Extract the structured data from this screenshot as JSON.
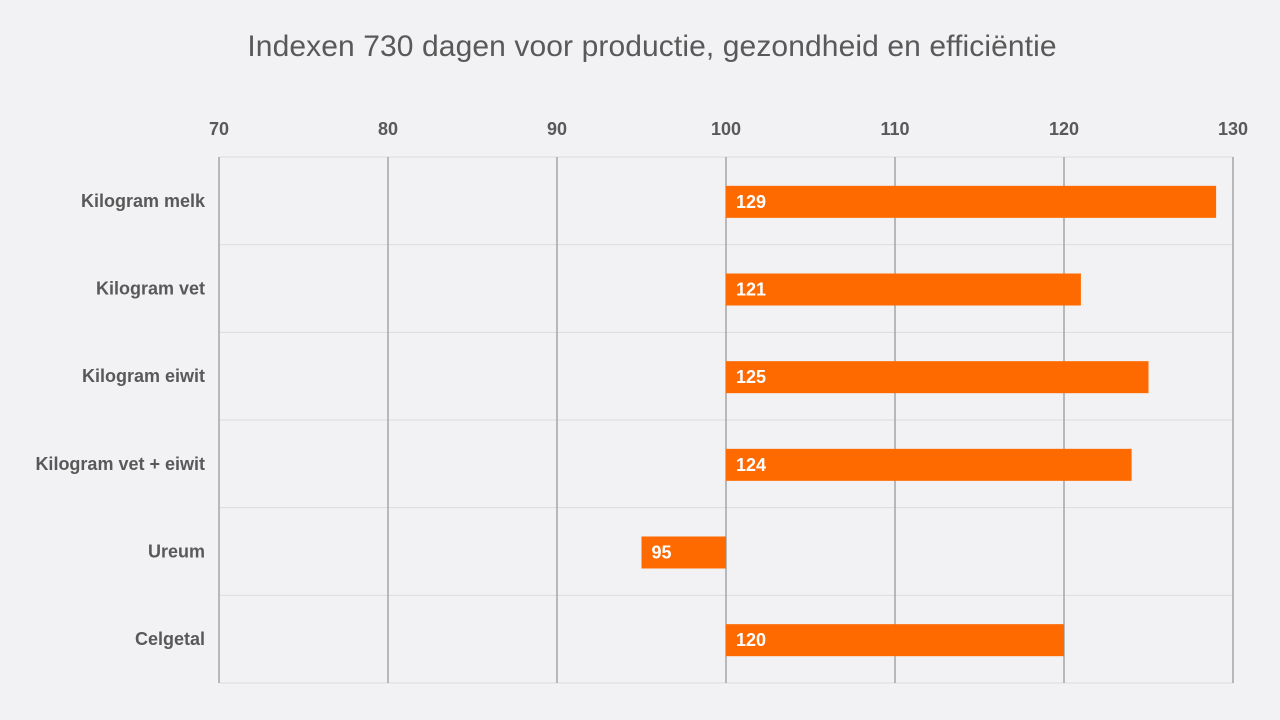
{
  "chart_data": {
    "type": "bar",
    "orientation": "horizontal",
    "title": "Indexen 730 dagen voor productie, gezondheid en efficiëntie",
    "categories": [
      "Kilogram melk",
      "Kilogram vet",
      "Kilogram eiwit",
      "Kilogram vet + eiwit",
      "Ureum",
      "Celgetal"
    ],
    "values": [
      129,
      121,
      125,
      124,
      95,
      120
    ],
    "baseline": 100,
    "xlim": [
      70,
      130
    ],
    "xticks": [
      70,
      80,
      90,
      100,
      110,
      120,
      130
    ],
    "axis_position": "top",
    "grid": true,
    "bar_color": "#ff6a00",
    "gridline_color": "#a6a6a6",
    "separator_color": "#dcdcdc",
    "text_color": "#595959",
    "label_color": "#ffffff"
  }
}
